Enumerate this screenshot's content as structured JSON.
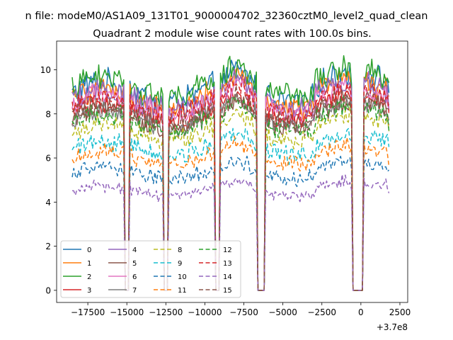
{
  "figure": {
    "suptitle": "n file: modeM0/AS1A09_131T01_9000004702_32360cztM0_level2_quad_clean",
    "title": "Quadrant 2 module wise count rates with 100.0s bins.",
    "x_offset_label": "+3.7e8"
  },
  "chart_data": {
    "type": "line",
    "title": "Quadrant 2 module wise count rates with 100.0s bins.",
    "xlabel": "",
    "ylabel": "",
    "x_offset": 370000000,
    "xlim": [
      -19500,
      3000
    ],
    "ylim": [
      -0.55,
      11.3
    ],
    "xticks": [
      -17500,
      -15000,
      -12500,
      -10000,
      -7500,
      -5000,
      -2500,
      0,
      2500
    ],
    "xtick_labels": [
      "−17500",
      "−15000",
      "−12500",
      "−10000",
      "−7500",
      "−5000",
      "−2500",
      "0",
      "2500"
    ],
    "yticks": [
      0,
      2,
      4,
      6,
      8,
      10
    ],
    "ytick_labels": [
      "0",
      "2",
      "4",
      "6",
      "8",
      "10"
    ],
    "x_range": [
      -18500,
      1800
    ],
    "bin_width_s": 100,
    "gaps": [
      {
        "start": -15100,
        "end": -14900
      },
      {
        "start": -12600,
        "end": -12400
      },
      {
        "start": -9300,
        "end": -9100
      },
      {
        "start": -6600,
        "end": -6200
      },
      {
        "start": -500,
        "end": 100
      }
    ],
    "envelope_note": "approximate mean level of each module's count rate; gaps drop to 0",
    "legend_position": "lower-left",
    "series": [
      {
        "name": "0",
        "mean": 9.0,
        "color": "#1f77b4",
        "dash": "solid"
      },
      {
        "name": "1",
        "mean": 8.7,
        "color": "#ff7f0e",
        "dash": "solid"
      },
      {
        "name": "2",
        "mean": 9.2,
        "color": "#2ca02c",
        "dash": "solid"
      },
      {
        "name": "3",
        "mean": 8.1,
        "color": "#d62728",
        "dash": "solid"
      },
      {
        "name": "4",
        "mean": 8.6,
        "color": "#9467bd",
        "dash": "solid"
      },
      {
        "name": "5",
        "mean": 7.8,
        "color": "#8c564b",
        "dash": "solid"
      },
      {
        "name": "6",
        "mean": 8.4,
        "color": "#e377c2",
        "dash": "solid"
      },
      {
        "name": "7",
        "mean": 7.8,
        "color": "#7f7f7f",
        "dash": "solid"
      },
      {
        "name": "8",
        "mean": 7.2,
        "color": "#bcbd22",
        "dash": "dashed"
      },
      {
        "name": "9",
        "mean": 6.4,
        "color": "#17becf",
        "dash": "dashed"
      },
      {
        "name": "10",
        "mean": 5.3,
        "color": "#1f77b4",
        "dash": "dashed"
      },
      {
        "name": "11",
        "mean": 6.0,
        "color": "#ff7f0e",
        "dash": "dashed"
      },
      {
        "name": "12",
        "mean": 7.6,
        "color": "#2ca02c",
        "dash": "dashed"
      },
      {
        "name": "13",
        "mean": 8.3,
        "color": "#d62728",
        "dash": "dashed"
      },
      {
        "name": "14",
        "mean": 4.5,
        "color": "#9467bd",
        "dash": "dashed"
      },
      {
        "name": "15",
        "mean": 7.9,
        "color": "#8c564b",
        "dash": "dashed"
      }
    ]
  }
}
